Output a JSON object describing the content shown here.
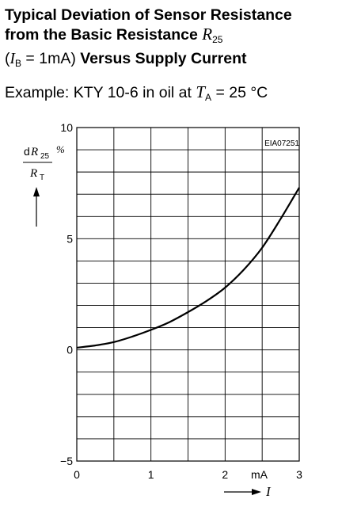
{
  "heading": {
    "line1": "Typical Deviation of Sensor Resistance",
    "line2_text": "from the Basic Resistance ",
    "r_symbol": "R",
    "r_sub": "25",
    "line3_open": "(",
    "ib_symbol": "I",
    "ib_sub": "B",
    "line3_cond": " = 1mA) ",
    "line3_bold": "Versus Supply Current"
  },
  "example": {
    "prefix": "Example: KTY 10-6 in oil at ",
    "t_symbol": "T",
    "t_sub": "A",
    "suffix": " = 25 °C"
  },
  "chart_data": {
    "type": "line",
    "code": "EIA07251",
    "ylabel": {
      "num_d": "d",
      "num_r": "R",
      "num_sub": "25",
      "den_r": "R",
      "den_sub": "T",
      "unit": "%"
    },
    "xlabel": {
      "symbol": "I",
      "unit": "mA"
    },
    "xlim": [
      0,
      3
    ],
    "ylim": [
      -5,
      10
    ],
    "x_ticks": [
      "0",
      "1",
      "2",
      "3"
    ],
    "y_ticks": [
      "10",
      "5",
      "0",
      "−5"
    ],
    "grid": true,
    "series": [
      {
        "x": [
          0,
          0.25,
          0.5,
          0.75,
          1.0,
          1.25,
          1.5,
          1.75,
          2.0,
          2.25,
          2.5,
          2.75,
          3.0
        ],
        "y": [
          0.1,
          0.2,
          0.35,
          0.6,
          0.9,
          1.25,
          1.7,
          2.2,
          2.8,
          3.6,
          4.6,
          5.9,
          7.3
        ]
      }
    ]
  }
}
